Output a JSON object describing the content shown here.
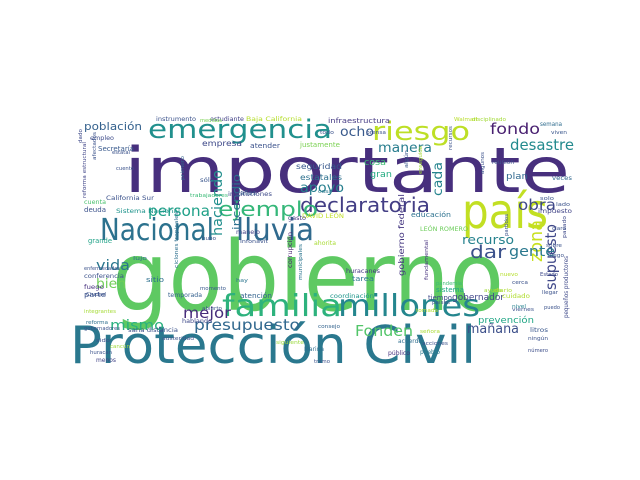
{
  "cloud": {
    "words": [
      {
        "text": "gobierno",
        "color": "#5ec962"
      },
      {
        "text": "importante",
        "color": "#472f7d"
      },
      {
        "text": "Protección Civil",
        "color": "#2a788e"
      },
      {
        "text": "país",
        "color": "#c2df23"
      },
      {
        "text": "Nacional",
        "color": "#2c728e"
      },
      {
        "text": "lluvia",
        "color": "#306a8e"
      },
      {
        "text": "familia",
        "color": "#2db27d"
      },
      {
        "text": "millones",
        "color": "#24868e"
      },
      {
        "text": "emergencia",
        "color": "#21908d"
      },
      {
        "text": "riesgo",
        "color": "#bddf26"
      },
      {
        "text": "declaratoria",
        "color": "#433e85"
      },
      {
        "text": "ejemplo",
        "color": "#35b779"
      },
      {
        "text": "presupuesto",
        "color": "#31688e"
      },
      {
        "text": "Fonden",
        "color": "#52c569"
      },
      {
        "text": "mismo",
        "color": "#2ab07f"
      },
      {
        "text": "mejor",
        "color": "#472d7b"
      },
      {
        "text": "bien",
        "color": "#70cf57"
      },
      {
        "text": "vida",
        "color": "#2a768e"
      },
      {
        "text": "dar",
        "color": "#3b518b"
      },
      {
        "text": "zona",
        "color": "#c8e020"
      },
      {
        "text": "supuesto",
        "color": "#3f4788"
      },
      {
        "text": "gente",
        "color": "#2a788e"
      },
      {
        "text": "obra",
        "color": "#3f4889"
      },
      {
        "text": "desastre",
        "color": "#238a8d"
      },
      {
        "text": "manera",
        "color": "#287d8e"
      },
      {
        "text": "fondo",
        "color": "#481f70"
      },
      {
        "text": "ocho",
        "color": "#38598c"
      },
      {
        "text": "persona",
        "color": "#1fa088"
      },
      {
        "text": "apoyo",
        "color": "#277f8e"
      },
      {
        "text": "haciendo",
        "color": "#218f8d"
      },
      {
        "text": "recurso",
        "color": "#26828e"
      },
      {
        "text": "mañana",
        "color": "#3c4f8a"
      },
      {
        "text": "población",
        "color": "#34618d"
      },
      {
        "text": "cada",
        "color": "#25848e"
      },
      {
        "text": "incendio",
        "color": "#2c718e"
      },
      {
        "text": "gobernador",
        "color": "#404588"
      },
      {
        "text": "prevención",
        "color": "#21a685"
      },
      {
        "text": "plan",
        "color": "#31688e"
      },
      {
        "text": "cosa",
        "color": "#3dbc74"
      },
      {
        "text": "gran",
        "color": "#25ac82"
      },
      {
        "text": "estatales",
        "color": "#2d708e"
      },
      {
        "text": "seguridad",
        "color": "#38588c"
      },
      {
        "text": "gobierno federal",
        "color": "#453781"
      },
      {
        "text": "empresa",
        "color": "#3e4989"
      },
      {
        "text": "atender",
        "color": "#3b528b"
      },
      {
        "text": "infraestructura",
        "color": "#443983"
      },
      {
        "text": "instrumento",
        "color": "#3b528b"
      },
      {
        "text": "estudiante",
        "color": "#424186"
      },
      {
        "text": "Baja California",
        "color": "#b5de2b"
      },
      {
        "text": "disciplinado",
        "color": "#a2da37"
      },
      {
        "text": "Walmart",
        "color": "#b8de29"
      },
      {
        "text": "semana",
        "color": "#2f6c8e"
      },
      {
        "text": "viven",
        "color": "#39568c"
      },
      {
        "text": "empleo",
        "color": "#3e4c8a"
      },
      {
        "text": "Secretaría",
        "color": "#38598c"
      },
      {
        "text": "deuda",
        "color": "#3b528b"
      },
      {
        "text": "cuenta",
        "color": "#4ac16d"
      },
      {
        "text": "California Sur",
        "color": "#3b528b"
      },
      {
        "text": "Sistema Nacional",
        "color": "#1f948c"
      },
      {
        "text": "DAVID LEÓN",
        "color": "#c0df25"
      },
      {
        "text": "educación",
        "color": "#2c718e"
      },
      {
        "text": "impuesto",
        "color": "#414487"
      },
      {
        "text": "LEÓN ROMERO",
        "color": "#6ccd5a"
      },
      {
        "text": "sistema",
        "color": "#22a785"
      },
      {
        "text": "tiempo",
        "color": "#3e4989"
      },
      {
        "text": "cuidado",
        "color": "#b0dd2f"
      },
      {
        "text": "atención",
        "color": "#33638d"
      },
      {
        "text": "coordinación",
        "color": "#1f968b"
      },
      {
        "text": "tarea",
        "color": "#2a788e"
      },
      {
        "text": "huracanes",
        "color": "#453882"
      },
      {
        "text": "grande",
        "color": "#1fa287"
      },
      {
        "text": "conferencia",
        "color": "#3b528b"
      },
      {
        "text": "fuego",
        "color": "#46307e"
      },
      {
        "text": "parte",
        "color": "#3b528b"
      },
      {
        "text": "reforma",
        "color": "#2e6e8e"
      },
      {
        "text": "temporada",
        "color": "#34608d"
      },
      {
        "text": "hablando",
        "color": "#3e4989"
      },
      {
        "text": "sitio",
        "color": "#2d708e"
      },
      {
        "text": "manejo",
        "color": "#424086"
      },
      {
        "text": "gasto",
        "color": "#453781"
      },
      {
        "text": "años",
        "color": "#33638d"
      },
      {
        "text": "justamente",
        "color": "#7ad151"
      },
      {
        "text": "sólo",
        "color": "#39558c"
      },
      {
        "text": "trabajadores",
        "color": "#3aba76"
      },
      {
        "text": "instituciones",
        "color": "#3e4a89"
      },
      {
        "text": "reunión",
        "color": "#3b528b"
      },
      {
        "text": "veces",
        "color": "#31688e"
      },
      {
        "text": "litros",
        "color": "#39568c"
      },
      {
        "text": "número",
        "color": "#3d4e8a"
      },
      {
        "text": "pueblo",
        "color": "#2a788e"
      },
      {
        "text": "acuerdo",
        "color": "#2e6e8e"
      },
      {
        "text": "público",
        "color": "#46327e"
      },
      {
        "text": "menos",
        "color": "#414487"
      },
      {
        "text": "sana distancia",
        "color": "#3b528b"
      },
      {
        "text": "austeridad",
        "color": "#3b528b"
      },
      {
        "text": "integrantes",
        "color": "#a5db36"
      },
      {
        "text": "medidas",
        "color": "#7ad151"
      },
      {
        "text": "enfermedades",
        "color": "#3b528b"
      },
      {
        "text": "pandemia",
        "color": "#3dbc74"
      },
      {
        "text": "fundamental",
        "color": "#46307e"
      },
      {
        "text": "países",
        "color": "#3b528b"
      },
      {
        "text": "diario",
        "color": "#addc30"
      },
      {
        "text": "momento",
        "color": "#38588c"
      },
      {
        "text": "prensa",
        "color": "#3b528b"
      },
      {
        "text": "algún",
        "color": "#39568c"
      },
      {
        "text": "primero",
        "color": "#33638d"
      },
      {
        "text": "ciclones tropicales",
        "color": "#2e6f8e"
      },
      {
        "text": "corrupción",
        "color": "#481f70"
      },
      {
        "text": "municipales",
        "color": "#2b748e"
      },
      {
        "text": "Infonavit",
        "color": "#3b528b"
      },
      {
        "text": "ahorita",
        "color": "#a8db34"
      },
      {
        "text": "tomada",
        "color": "#b2dd2d"
      },
      {
        "text": "ningún",
        "color": "#3b528b"
      },
      {
        "text": "Estado",
        "color": "#3e4989"
      },
      {
        "text": "lado",
        "color": "#3b528b"
      },
      {
        "text": "luego",
        "color": "#3b528b"
      },
      {
        "text": "ayuda",
        "color": "#a0da39"
      },
      {
        "text": "pasado",
        "color": "#3e4989"
      },
      {
        "text": "cerca",
        "color": "#3b528b"
      },
      {
        "text": "viernes",
        "color": "#3b528b"
      },
      {
        "text": "siguiente",
        "color": "#9bd93c"
      },
      {
        "text": "Marina",
        "color": "#2e6e8e"
      },
      {
        "text": "acciones",
        "color": "#3b528b"
      },
      {
        "text": "señora",
        "color": "#aadc32"
      },
      {
        "text": "consejo",
        "color": "#33638d"
      },
      {
        "text": "tramo",
        "color": "#3b528b"
      },
      {
        "text": "casa",
        "color": "#2a788e"
      },
      {
        "text": "todo",
        "color": "#3b528b"
      },
      {
        "text": "nivel",
        "color": "#26828e"
      },
      {
        "text": "sido",
        "color": "#3b528b"
      },
      {
        "text": "hay",
        "color": "#2b758e"
      },
      {
        "text": "lujo",
        "color": "#2f6c8e"
      },
      {
        "text": "nuevo",
        "color": "#b5de2b"
      },
      {
        "text": "Ciudad",
        "color": "#3b528b"
      },
      {
        "text": "cuento",
        "color": "#3b528b"
      },
      {
        "text": "gobernadores",
        "color": "#3b528b"
      },
      {
        "text": "huracán",
        "color": "#3b528b"
      },
      {
        "text": "cancún",
        "color": "#9fda3a"
      },
      {
        "text": "dado",
        "color": "#3e4989"
      },
      {
        "text": "estatal",
        "color": "#3b528b"
      },
      {
        "text": "afectados",
        "color": "#3b528b"
      },
      {
        "text": "reforma estructural",
        "color": "#404588"
      },
      {
        "text": "recursos",
        "color": "#3b528b"
      },
      {
        "text": "enseguida",
        "color": "#a5db36"
      },
      {
        "text": "hubo",
        "color": "#3b528b"
      },
      {
        "text": "algunos",
        "color": "#3b528b"
      },
      {
        "text": "partidos",
        "color": "#3b528b"
      },
      {
        "text": "pequeños productores",
        "color": "#3e4989"
      },
      {
        "text": "llegar",
        "color": "#3b528b"
      },
      {
        "text": "abierto",
        "color": "#3b528b"
      },
      {
        "text": "claro",
        "color": "#3b528b"
      },
      {
        "text": "puedo",
        "color": "#3b528b"
      },
      {
        "text": "sobre",
        "color": "#3b528b"
      },
      {
        "text": "solo",
        "color": "#3b528b"
      }
    ]
  }
}
